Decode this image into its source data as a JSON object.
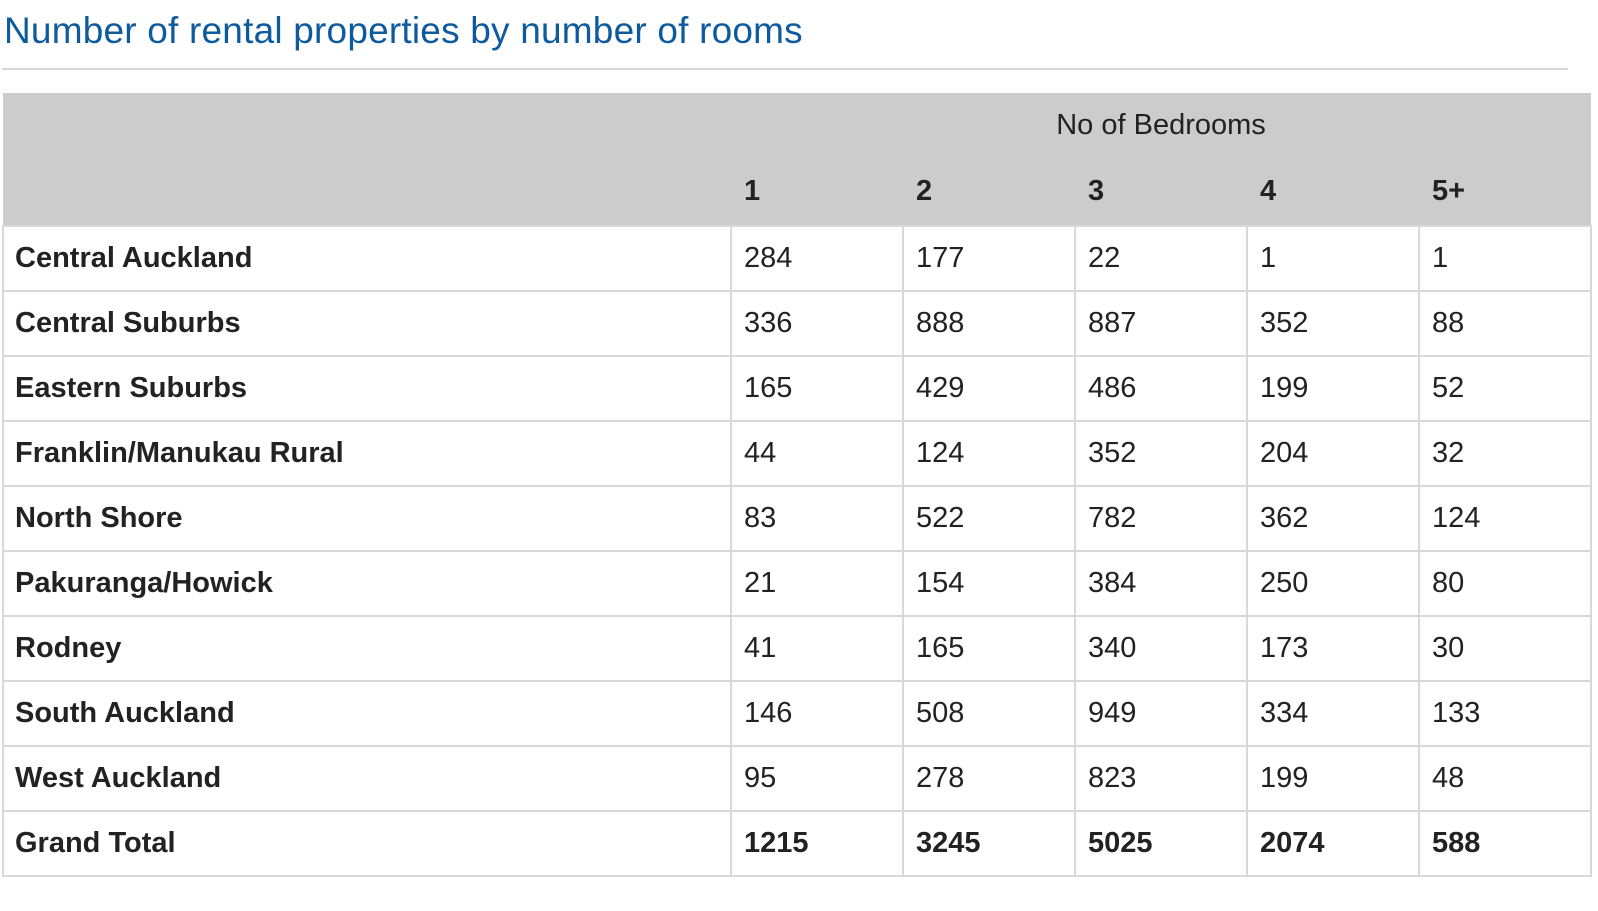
{
  "page": {
    "title": "Number of rental properties by number of rooms"
  },
  "chart_data": {
    "type": "table",
    "title": "Number of rental properties by number of rooms",
    "column_group_label": "No of Bedrooms",
    "columns": [
      "1",
      "2",
      "3",
      "4",
      "5+"
    ],
    "rows": [
      {
        "label": "Central Auckland",
        "values": [
          "284",
          "177",
          "22",
          "1",
          "1"
        ]
      },
      {
        "label": "Central Suburbs",
        "values": [
          "336",
          "888",
          "887",
          "352",
          "88"
        ]
      },
      {
        "label": "Eastern Suburbs",
        "values": [
          "165",
          "429",
          "486",
          "199",
          "52"
        ]
      },
      {
        "label": "Franklin/Manukau Rural",
        "values": [
          "44",
          "124",
          "352",
          "204",
          "32"
        ]
      },
      {
        "label": "North Shore",
        "values": [
          "83",
          "522",
          "782",
          "362",
          "124"
        ]
      },
      {
        "label": "Pakuranga/Howick",
        "values": [
          "21",
          "154",
          "384",
          "250",
          "80"
        ]
      },
      {
        "label": "Rodney",
        "values": [
          "41",
          "165",
          "340",
          "173",
          "30"
        ]
      },
      {
        "label": "South Auckland",
        "values": [
          "146",
          "508",
          "949",
          "334",
          "133"
        ]
      },
      {
        "label": "West Auckland",
        "values": [
          "95",
          "278",
          "823",
          "199",
          "48"
        ]
      }
    ],
    "total": {
      "label": "Grand Total",
      "values": [
        "1215",
        "3245",
        "5025",
        "2074",
        "588"
      ]
    }
  },
  "colors": {
    "title": "#0d5a9e",
    "header_background": "#cccccc",
    "grid_line": "#d9d9d9"
  }
}
